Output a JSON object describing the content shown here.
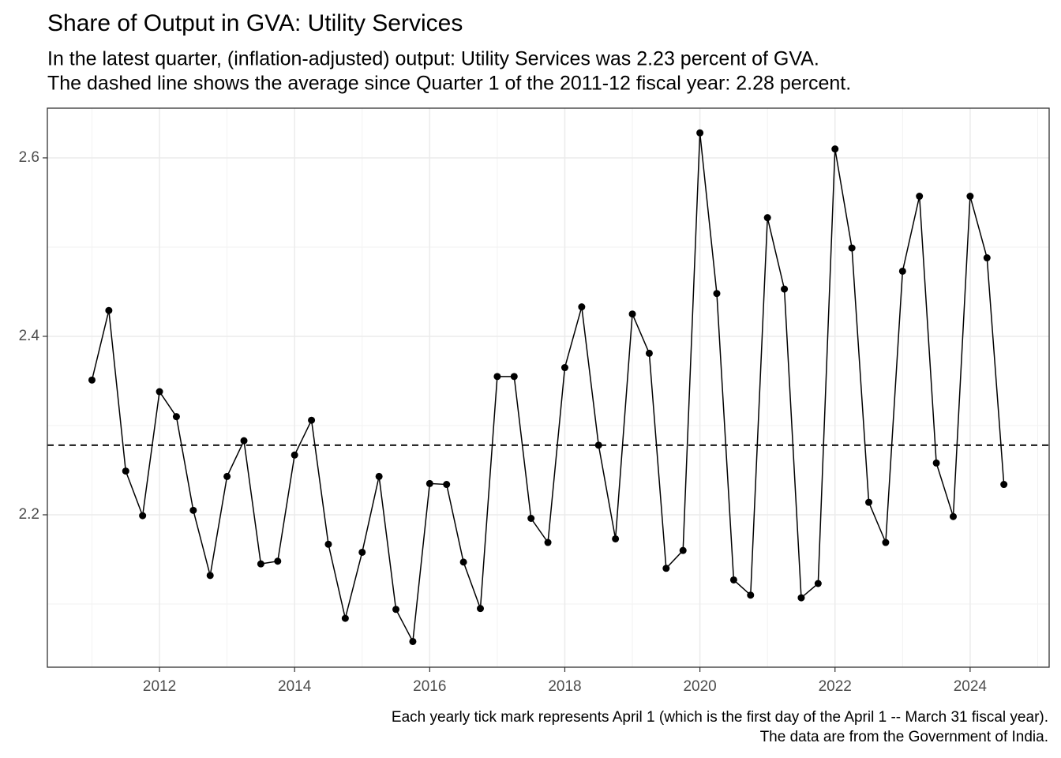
{
  "chart_data": {
    "type": "line",
    "title": "Share of Output in GVA: Utility Services",
    "subtitle": [
      "In the latest quarter, (inflation-adjusted) output: Utility Services was 2.23 percent of GVA.",
      "The dashed line shows the average since Quarter 1 of the 2011-12 fiscal year: 2.28 percent."
    ],
    "caption": [
      "Each yearly tick mark represents April 1 (which is the first day of the April 1 -- March 31 fiscal year).",
      "The data are from the Government of India."
    ],
    "x": [
      2011,
      2011.25,
      2011.5,
      2011.75,
      2012,
      2012.25,
      2012.5,
      2012.75,
      2013,
      2013.25,
      2013.5,
      2013.75,
      2014,
      2014.25,
      2014.5,
      2014.75,
      2015,
      2015.25,
      2015.5,
      2015.75,
      2016,
      2016.25,
      2016.5,
      2016.75,
      2017,
      2017.25,
      2017.5,
      2017.75,
      2018,
      2018.25,
      2018.5,
      2018.75,
      2019,
      2019.25,
      2019.5,
      2019.75,
      2020,
      2020.25,
      2020.5,
      2020.75,
      2021,
      2021.25,
      2021.5,
      2021.75,
      2022,
      2022.25,
      2022.5,
      2022.75,
      2023,
      2023.25,
      2023.5,
      2023.75,
      2024,
      2024.25,
      2024.5
    ],
    "series": [
      {
        "name": "Utility Services",
        "color": "#000000",
        "values": [
          2.351,
          2.429,
          2.249,
          2.199,
          2.338,
          2.31,
          2.205,
          2.132,
          2.243,
          2.283,
          2.145,
          2.148,
          2.267,
          2.306,
          2.167,
          2.084,
          2.158,
          2.243,
          2.094,
          2.058,
          2.235,
          2.234,
          2.147,
          2.095,
          2.355,
          2.355,
          2.196,
          2.169,
          2.365,
          2.433,
          2.278,
          2.173,
          2.425,
          2.381,
          2.14,
          2.16,
          2.628,
          2.448,
          2.127,
          2.11,
          2.533,
          2.453,
          2.107,
          2.123,
          2.61,
          2.499,
          2.214,
          2.169,
          2.473,
          2.557,
          2.258,
          2.198,
          2.557,
          2.488,
          2.234
        ]
      }
    ],
    "average": 2.278,
    "xlim": [
      2010.34,
      2025.17
    ],
    "xticks": [
      2012,
      2014,
      2016,
      2018,
      2020,
      2022,
      2024
    ],
    "xminor": [
      2011,
      2013,
      2015,
      2017,
      2019,
      2021,
      2023,
      2025
    ],
    "ylim": [
      2.0292,
      2.6557
    ],
    "yticks": [
      {
        "value": 2.2,
        "label": "2.2"
      },
      {
        "value": 2.4,
        "label": "2.4"
      },
      {
        "value": 2.6,
        "label": "2.6"
      }
    ],
    "yminor": [
      2.1,
      2.3,
      2.5
    ],
    "grid": true
  }
}
